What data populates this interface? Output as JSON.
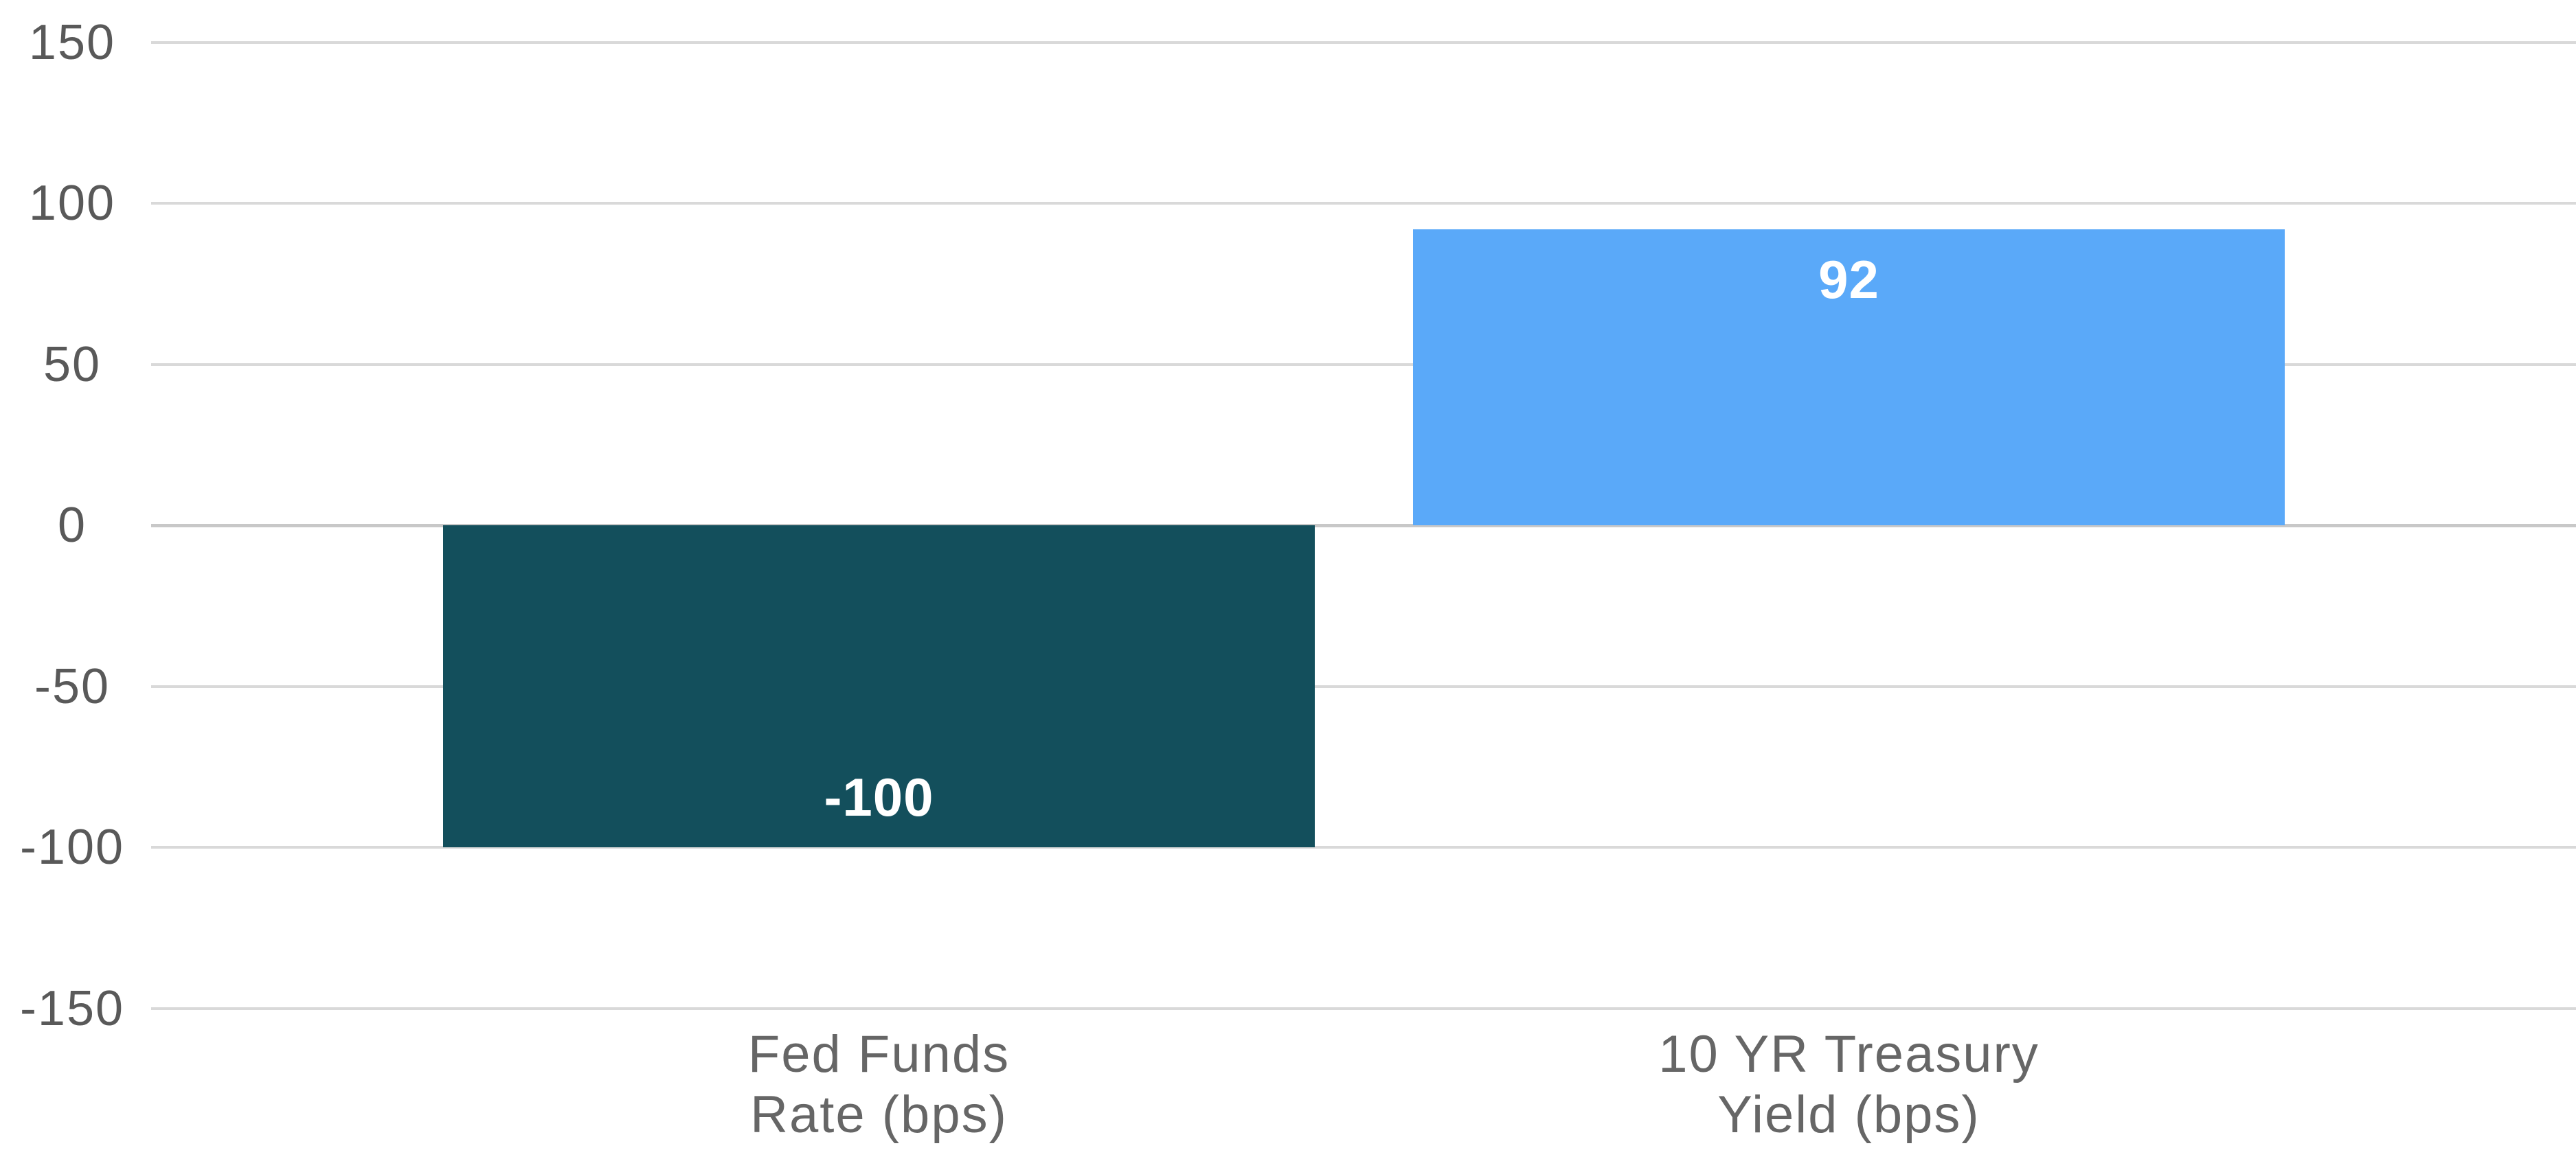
{
  "chart_data": {
    "type": "bar",
    "title": "",
    "category_lines": [
      [
        "Fed Funds",
        "Rate (bps)"
      ],
      [
        "10 YR Treasury",
        "Yield (bps)"
      ]
    ],
    "values": [
      -100,
      92
    ],
    "data_labels": [
      "-100",
      "92"
    ],
    "bar_colors": [
      "#134f5c",
      "#5aa9f9"
    ],
    "y_ticks": [
      150,
      100,
      50,
      0,
      -50,
      -100,
      -150
    ],
    "ylim": [
      -187,
      150
    ],
    "grid": true,
    "legend": "none",
    "colors": {
      "background": "#ffffff",
      "grid": "#d9d9d9",
      "zero_line": "#c8c8c8",
      "axis_tick_label": "#595959",
      "category_label": "#666666",
      "data_label": "#ffffff"
    }
  }
}
